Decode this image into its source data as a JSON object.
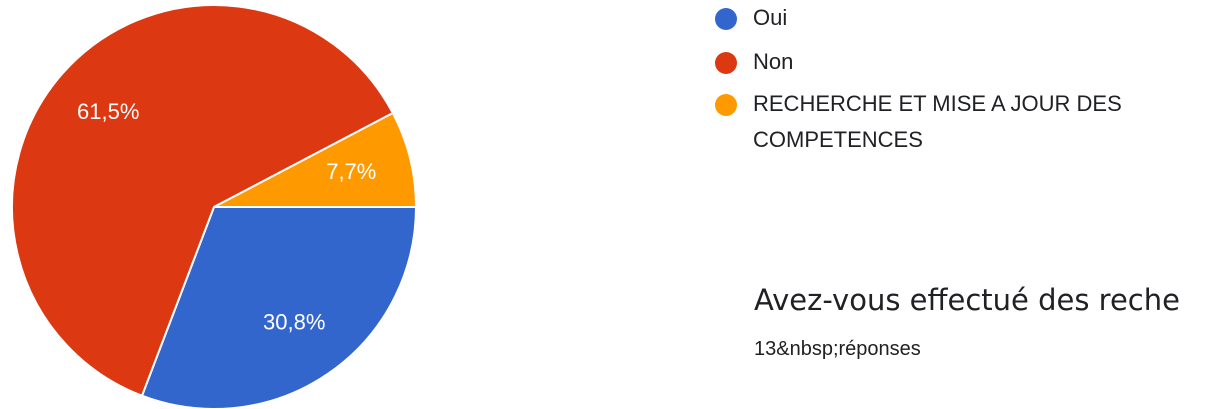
{
  "question": {
    "title": "Avez-vous effectué des reche",
    "responses": "13&nbsp;réponses"
  },
  "chart_data": {
    "type": "pie",
    "slices": [
      {
        "label": "Oui",
        "value": 30.8,
        "display": "30,8%",
        "color": "#3366cc"
      },
      {
        "label": "Non",
        "value": 61.5,
        "display": "61,5%",
        "color": "#dc3912"
      },
      {
        "label": "RECHERCHE ET MISE A JOUR DES COMPETENCES",
        "value": 7.7,
        "display": "7,7%",
        "color": "#ff9900"
      }
    ],
    "legend": "right"
  }
}
